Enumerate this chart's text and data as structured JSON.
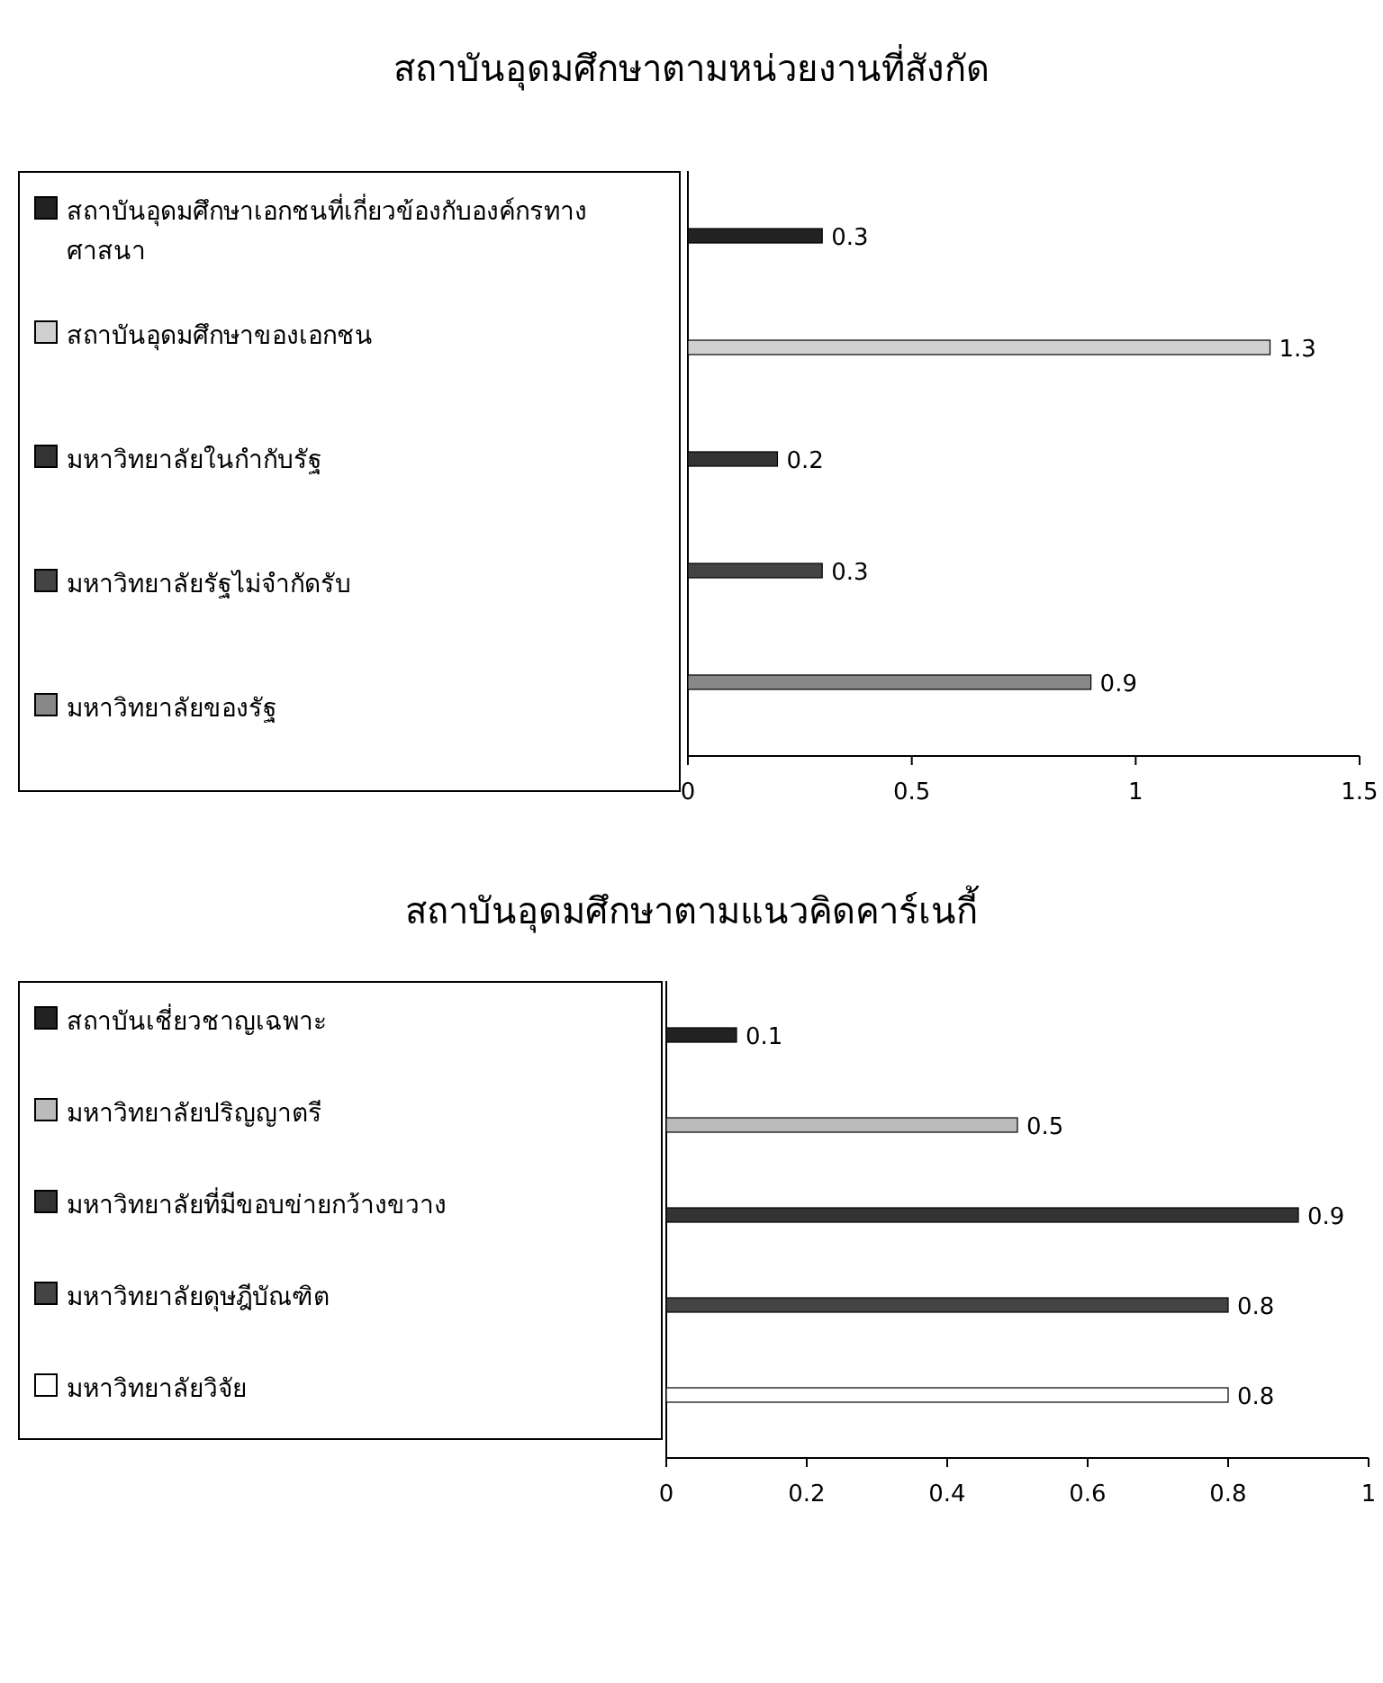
{
  "chart_data": [
    {
      "type": "bar",
      "orientation": "horizontal",
      "title": "สถาบันอุดมศึกษาตามหน่วยงานที่สังกัด",
      "categories": [
        null,
        null,
        null,
        null,
        null
      ],
      "xlim": [
        0,
        1.5
      ],
      "xticks": [
        0,
        0.5,
        1,
        1.5
      ],
      "data_labels": true,
      "legend": "left",
      "series": [
        {
          "name": "สถาบันอุดมศึกษาเอกชนที่เกี่ยวข้องกับองค์กรทางศาสนา",
          "color": "#222222",
          "values": [
            0.3,
            null,
            null,
            null,
            null
          ]
        },
        {
          "name": "สถาบันอุดมศึกษาของเอกชน",
          "color": "#d0d0d0",
          "values": [
            null,
            1.3,
            null,
            null,
            null
          ]
        },
        {
          "name": "มหาวิทยาลัยในกำกับรัฐ",
          "color": "#333333",
          "values": [
            null,
            null,
            0.2,
            null,
            null
          ]
        },
        {
          "name": "มหาวิทยาลัยรัฐไม่จำกัดรับ",
          "color": "#444444",
          "values": [
            null,
            null,
            null,
            0.3,
            null
          ]
        },
        {
          "name": "มหาวิทยาลัยของรัฐ",
          "color": "#888888",
          "values": [
            null,
            null,
            null,
            null,
            0.9
          ]
        }
      ]
    },
    {
      "type": "bar",
      "orientation": "horizontal",
      "title": "สถาบันอุดมศึกษาตามแนวคิดคาร์เนกี้",
      "categories": [
        null,
        null,
        null,
        null,
        null
      ],
      "xlim": [
        0,
        1
      ],
      "xticks": [
        0,
        0.2,
        0.4,
        0.6,
        0.8,
        1
      ],
      "data_labels": true,
      "legend": "left",
      "series": [
        {
          "name": "สถาบันเชี่ยวชาญเฉพาะ",
          "color": "#222222",
          "values": [
            0.1,
            null,
            null,
            null,
            null
          ]
        },
        {
          "name": "มหาวิทยาลัยปริญญาตรี",
          "color": "#bbbbbb",
          "values": [
            null,
            0.5,
            null,
            null,
            null
          ]
        },
        {
          "name": "มหาวิทยาลัยที่มีขอบข่ายกว้างขวาง",
          "color": "#333333",
          "values": [
            null,
            null,
            0.9,
            null,
            null
          ]
        },
        {
          "name": "มหาวิทยาลัยดุษฎีบัณฑิต",
          "color": "#444444",
          "values": [
            null,
            null,
            null,
            0.8,
            null
          ]
        },
        {
          "name": "มหาวิทยาลัยวิจัย",
          "color": "#ffffff",
          "values": [
            null,
            null,
            null,
            null,
            0.8
          ]
        }
      ]
    }
  ]
}
